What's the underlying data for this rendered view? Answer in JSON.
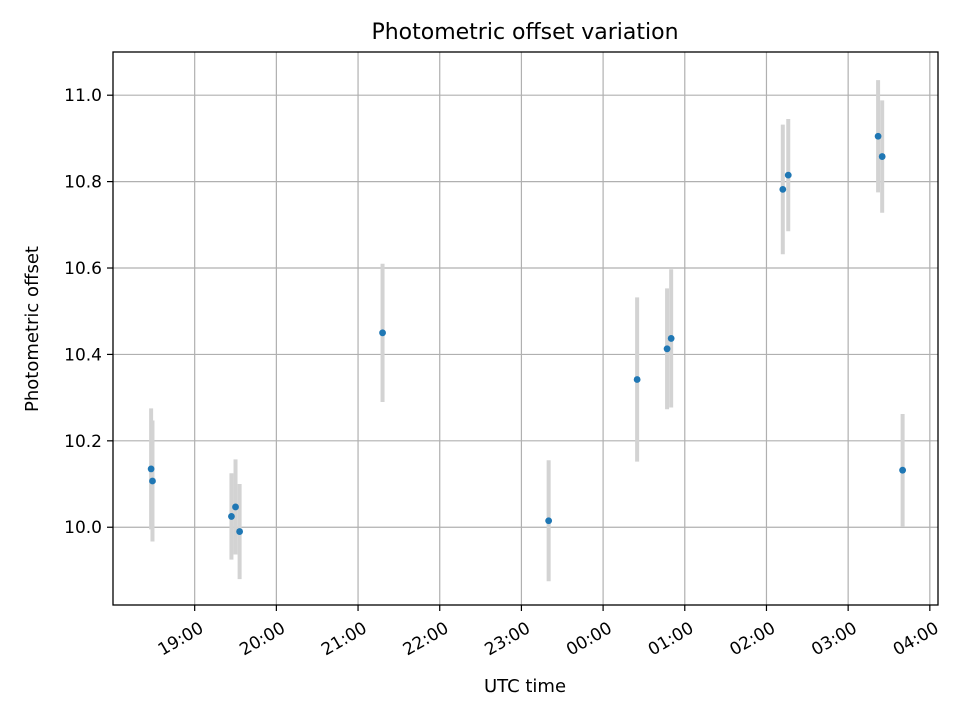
{
  "chart_data": {
    "type": "scatter",
    "title": "Photometric offset variation",
    "xlabel": "UTC time",
    "ylabel": "Photometric offset",
    "x_ticks": [
      "19:00",
      "20:00",
      "21:00",
      "22:00",
      "23:00",
      "00:00",
      "01:00",
      "02:00",
      "03:00",
      "04:00"
    ],
    "xlim": [
      "18:00",
      "04:06"
    ],
    "y_ticks": [
      "10.0",
      "10.2",
      "10.4",
      "10.6",
      "10.8",
      "11.0"
    ],
    "ylim": [
      9.82,
      11.1
    ],
    "grid": true,
    "points": [
      {
        "x": "18:28",
        "y": 10.135,
        "err": 0.14
      },
      {
        "x": "18:29",
        "y": 10.107,
        "err": 0.14
      },
      {
        "x": "19:27",
        "y": 10.025,
        "err": 0.1
      },
      {
        "x": "19:30",
        "y": 10.047,
        "err": 0.11
      },
      {
        "x": "19:33",
        "y": 9.99,
        "err": 0.11
      },
      {
        "x": "21:18",
        "y": 10.45,
        "err": 0.16
      },
      {
        "x": "23:20",
        "y": 10.015,
        "err": 0.14
      },
      {
        "x": "00:25",
        "y": 10.342,
        "err": 0.19
      },
      {
        "x": "00:47",
        "y": 10.413,
        "err": 0.14
      },
      {
        "x": "00:50",
        "y": 10.437,
        "err": 0.16
      },
      {
        "x": "02:12",
        "y": 10.782,
        "err": 0.15
      },
      {
        "x": "02:16",
        "y": 10.815,
        "err": 0.13
      },
      {
        "x": "03:22",
        "y": 10.905,
        "err": 0.13
      },
      {
        "x": "03:25",
        "y": 10.858,
        "err": 0.13
      },
      {
        "x": "03:40",
        "y": 10.132,
        "err": 0.13
      }
    ],
    "colors": {
      "point": "#1f77b4",
      "errorbar": "#d3d3d3",
      "grid": "#b0b0b0",
      "axes": "#000000"
    }
  }
}
